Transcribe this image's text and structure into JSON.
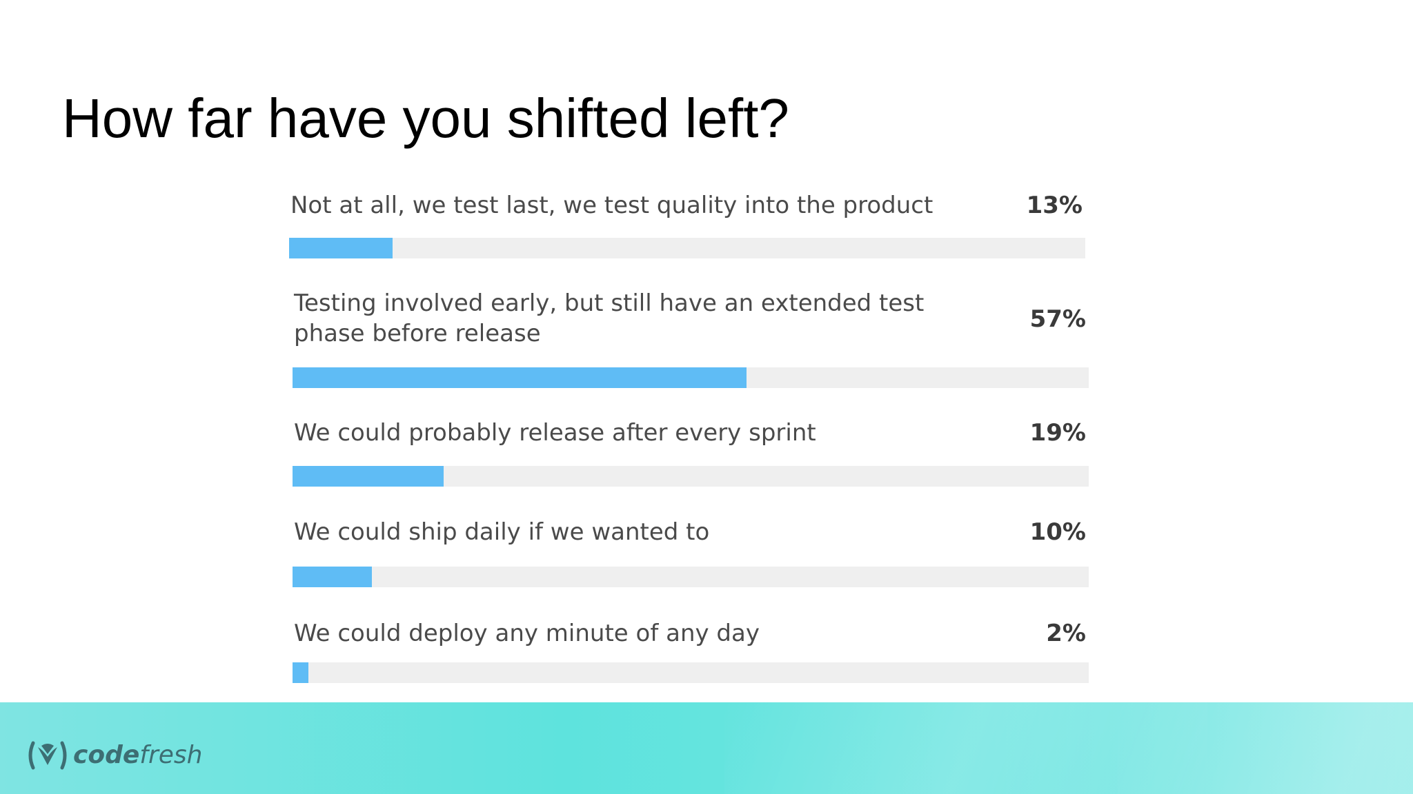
{
  "slide": {
    "title": "How far have you shifted left?"
  },
  "chart_data": {
    "type": "bar",
    "orientation": "horizontal",
    "title": "How far have you shifted left?",
    "categories": [
      "Not at all, we test last, we test quality into the product",
      "Testing involved early, but still have an extended test phase before release",
      "We could probably release after every sprint",
      "We could ship daily if we wanted to",
      "We could deploy any minute of any day"
    ],
    "values": [
      13,
      57,
      19,
      10,
      2
    ],
    "value_labels": [
      "13%",
      "57%",
      "19%",
      "10%",
      "2%"
    ],
    "xlim": [
      0,
      100
    ],
    "bar_color": "#5fbcf5",
    "track_color": "#efefef",
    "grid": false,
    "legend": "none"
  },
  "footer": {
    "brand_strong": "code",
    "brand_light": "fresh",
    "logo_icon": "codefresh-logo-icon",
    "colors": {
      "start": "#7fe4e2",
      "mid": "#5ee3dd",
      "end": "#97ece9",
      "logo": "#3d6e73"
    }
  }
}
